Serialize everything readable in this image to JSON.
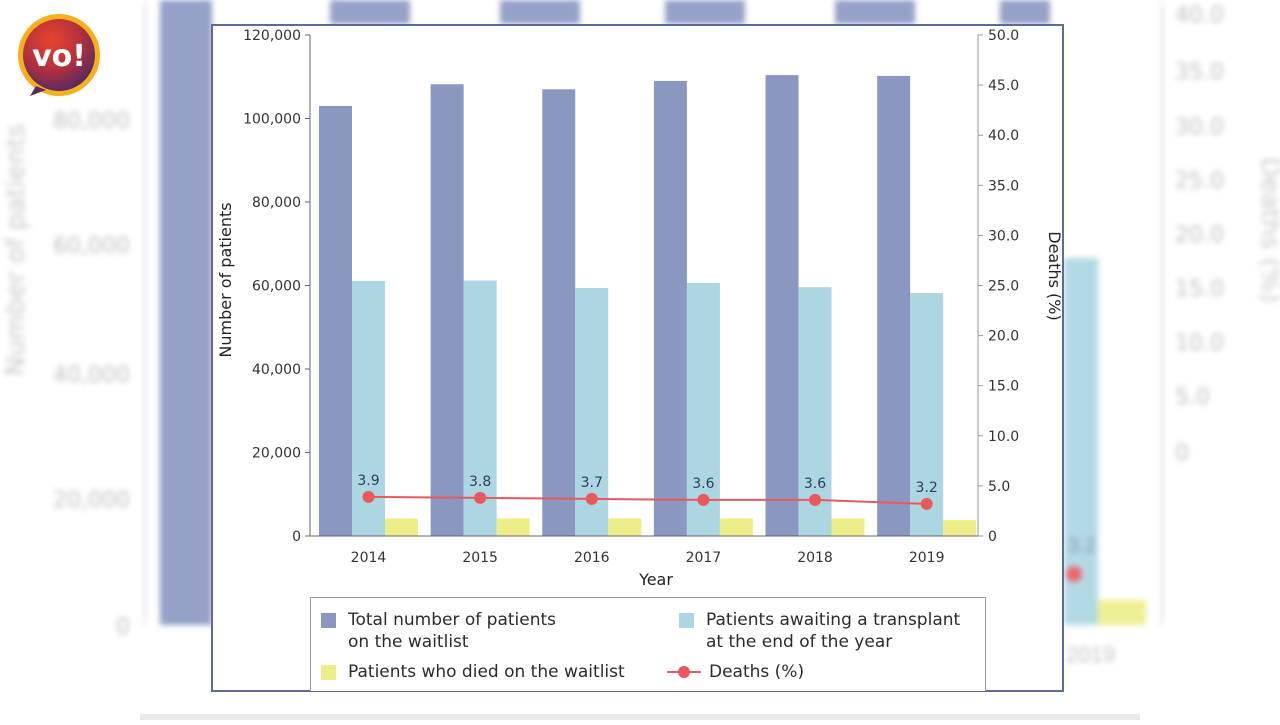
{
  "logo": {
    "text": "vo!",
    "icon": "vo-logo-badge"
  },
  "colors": {
    "total": "#8a97c1",
    "awaiting": "#abd6e2",
    "died": "#eeee88",
    "deaths_line": "#e8595c",
    "frame_border": "#5b6b9a"
  },
  "chart_data": {
    "type": "bar",
    "title": "",
    "xlabel": "Year",
    "ylabel": "Number of patients",
    "y2label": "Deaths (%)",
    "categories": [
      "2014",
      "2015",
      "2016",
      "2017",
      "2018",
      "2019"
    ],
    "ylim": [
      0,
      120000
    ],
    "y2lim": [
      0,
      50
    ],
    "yticks": [
      "0",
      "20,000",
      "40,000",
      "60,000",
      "80,000",
      "100,000",
      "120,000"
    ],
    "ytick_values": [
      0,
      20000,
      40000,
      60000,
      80000,
      100000,
      120000
    ],
    "y2ticks": [
      "0",
      "5.0",
      "10.0",
      "15.0",
      "20.0",
      "25.0",
      "30.0",
      "35.0",
      "40.0",
      "45.0",
      "50.0"
    ],
    "y2tick_values": [
      0,
      5,
      10,
      15,
      20,
      25,
      30,
      35,
      40,
      45,
      50
    ],
    "grid": false,
    "legend_position": "bottom",
    "series": [
      {
        "name": "Total number of patients on the waitlist",
        "type": "bar",
        "axis": "left",
        "values": [
          103000,
          108200,
          107000,
          109000,
          110400,
          110200
        ]
      },
      {
        "name": "Patients awaiting a transplant at the end of the year",
        "type": "bar",
        "axis": "left",
        "values": [
          61100,
          61200,
          59400,
          60600,
          59600,
          58200
        ]
      },
      {
        "name": "Patients who died on the waitlist",
        "type": "bar",
        "axis": "left",
        "values": [
          4200,
          4200,
          4200,
          4200,
          4200,
          3800
        ]
      },
      {
        "name": "Deaths (%)",
        "type": "line",
        "axis": "right",
        "values": [
          3.9,
          3.8,
          3.7,
          3.6,
          3.6,
          3.2
        ],
        "labels": [
          "3.9",
          "3.8",
          "3.7",
          "3.6",
          "3.6",
          "3.2"
        ]
      }
    ]
  },
  "legend": {
    "items": [
      {
        "line1": "Total number of patients",
        "line2": "on the waitlist"
      },
      {
        "line1": "Patients awaiting a transplant",
        "line2": "at the end of the year"
      },
      {
        "line1": "Patients who died on the waitlist"
      },
      {
        "line1": "Deaths (%)"
      }
    ]
  },
  "background": {
    "left_ticks": [
      "0",
      "20,000",
      "40,000",
      "60,000",
      "80,000"
    ],
    "right_ticks": [
      "0",
      "5.0",
      "10.0",
      "15.0",
      "20.0",
      "25.0",
      "30.0",
      "35.0",
      "40.0"
    ],
    "left_label": "Number of patients",
    "right_label": "Deaths (%)",
    "point_label": "3.2",
    "year_label": "2019"
  }
}
